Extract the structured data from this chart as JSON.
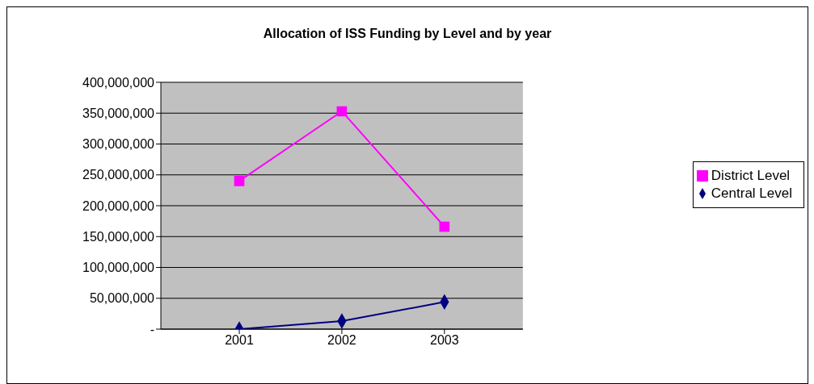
{
  "chart_data": {
    "type": "line",
    "title": "Allocation of ISS Funding by Level and by year",
    "categories": [
      "2001",
      "2002",
      "2003"
    ],
    "series": [
      {
        "name": "District Level",
        "color": "#ff00ff",
        "marker": "square",
        "values": [
          240000000,
          353000000,
          166000000
        ]
      },
      {
        "name": "Central Level",
        "color": "#000080",
        "marker": "diamond",
        "values": [
          0,
          13000000,
          44000000
        ]
      }
    ],
    "ylim": [
      0,
      400000000
    ],
    "yticks": [
      {
        "value": 0,
        "label": "-"
      },
      {
        "value": 50000000,
        "label": "50,000,000"
      },
      {
        "value": 100000000,
        "label": "100,000,000"
      },
      {
        "value": 150000000,
        "label": "150,000,000"
      },
      {
        "value": 200000000,
        "label": "200,000,000"
      },
      {
        "value": 250000000,
        "label": "250,000,000"
      },
      {
        "value": 300000000,
        "label": "300,000,000"
      },
      {
        "value": 350000000,
        "label": "350,000,000"
      },
      {
        "value": 400000000,
        "label": "400,000,000"
      }
    ],
    "grid": "y",
    "legend": "right",
    "line_style": "solid"
  }
}
